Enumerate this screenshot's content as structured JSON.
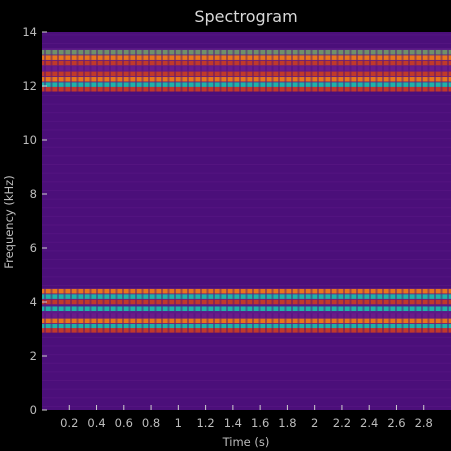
{
  "chart_data": {
    "type": "heatmap",
    "title": "Spectrogram",
    "xlabel": "Time (s)",
    "ylabel": "Frequency (kHz)",
    "xlim": [
      0,
      3.0
    ],
    "ylim": [
      0,
      14
    ],
    "x_ticks": [
      "0.2",
      "0.4",
      "0.6",
      "0.8",
      "1",
      "1.2",
      "1.4",
      "1.6",
      "1.8",
      "2",
      "2.2",
      "2.4",
      "2.6",
      "2.8"
    ],
    "x_tick_values": [
      0.2,
      0.4,
      0.6,
      0.8,
      1.0,
      1.2,
      1.4,
      1.6,
      1.8,
      2.0,
      2.2,
      2.4,
      2.6,
      2.8
    ],
    "y_ticks": [
      "0",
      "2",
      "4",
      "6",
      "8",
      "10",
      "12",
      "14"
    ],
    "y_tick_values": [
      0,
      2,
      4,
      6,
      8,
      10,
      12,
      14
    ],
    "colormap": [
      "#4b0f7a",
      "#6a1b8a",
      "#c0392b",
      "#e8761c",
      "#1fb3a8",
      "#6f8f6a"
    ],
    "background_color": "#4b0f7a",
    "bands": [
      {
        "low": 11.8,
        "high": 13.4,
        "description": "upper tone cluster"
      },
      {
        "low": 2.9,
        "high": 4.5,
        "description": "lower tone cluster"
      }
    ],
    "band_rows": [
      {
        "f": 13.25,
        "color": "#6f8f6a"
      },
      {
        "f": 13.05,
        "color": "#e8761c"
      },
      {
        "f": 12.85,
        "color": "#c0392b"
      },
      {
        "f": 12.65,
        "color": "#6a1b8a"
      },
      {
        "f": 12.45,
        "color": "#c0392b"
      },
      {
        "f": 12.25,
        "color": "#e8761c"
      },
      {
        "f": 12.05,
        "color": "#1fb3a8"
      },
      {
        "f": 11.88,
        "color": "#c0392b"
      },
      {
        "f": 4.4,
        "color": "#e8761c"
      },
      {
        "f": 4.2,
        "color": "#1fb3a8"
      },
      {
        "f": 4.0,
        "color": "#c0392b"
      },
      {
        "f": 3.75,
        "color": "#1fb3a8"
      },
      {
        "f": 3.5,
        "color": "#6a1b8a"
      },
      {
        "f": 3.3,
        "color": "#e8761c"
      },
      {
        "f": 3.1,
        "color": "#1fb3a8"
      },
      {
        "f": 2.95,
        "color": "#c0392b"
      }
    ],
    "grid": false,
    "legend": "none"
  }
}
